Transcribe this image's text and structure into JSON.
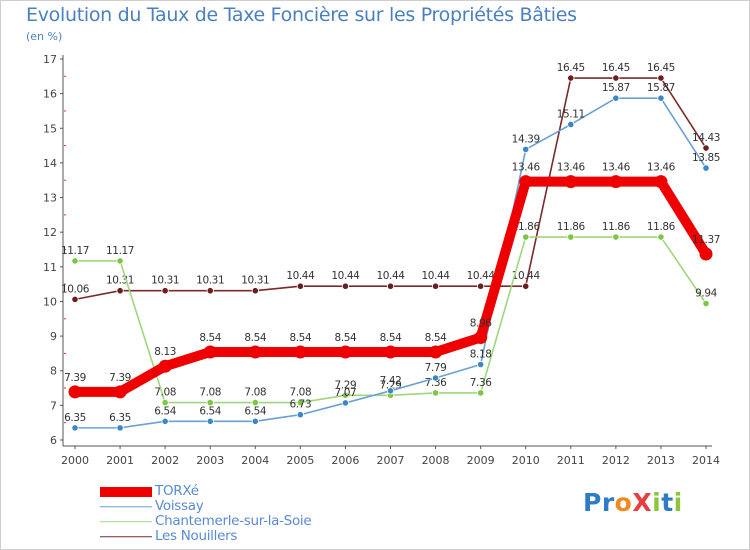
{
  "title": "Evolution du Taux de Taxe Foncière sur les Propriétés Bâties",
  "unit_label": "(en %)",
  "brand": {
    "name": "ProXiti",
    "letters": [
      {
        "ch": "P",
        "color": "#2e7bc6"
      },
      {
        "ch": "r",
        "color": "#2e7bc6"
      },
      {
        "ch": "o",
        "color": "#f08a22"
      },
      {
        "ch": "X",
        "color": "#e73f3f"
      },
      {
        "ch": "i",
        "color": "#8cc63f"
      },
      {
        "ch": "t",
        "color": "#2e7bc6"
      },
      {
        "ch": "i",
        "color": "#8cc63f"
      }
    ]
  },
  "chart_data": {
    "type": "line",
    "title": "Evolution du Taux de Taxe Foncière sur les Propriétés Bâties",
    "ylabel": "(en %)",
    "xlabel": "",
    "x": [
      "2000",
      "2001",
      "2002",
      "2003",
      "2004",
      "2005",
      "2006",
      "2007",
      "2008",
      "2009",
      "2010",
      "2011",
      "2012",
      "2013",
      "2014"
    ],
    "ylim": [
      6,
      17
    ],
    "yticks": [
      "6",
      "7",
      "8",
      "9",
      "10",
      "11",
      "12",
      "13",
      "14",
      "15",
      "16",
      "17"
    ],
    "grid": false,
    "legend_position": "bottom-left",
    "series": [
      {
        "name": "Les Nouillers",
        "color": "#7a2a2a",
        "dot": "#6b1e1e",
        "width": "thin",
        "values": [
          10.06,
          10.31,
          10.31,
          10.31,
          10.31,
          10.44,
          10.44,
          10.44,
          10.44,
          10.44,
          10.44,
          16.45,
          16.45,
          16.45,
          14.43
        ],
        "labels": [
          "10.06",
          "10.31",
          "10.31",
          "10.31",
          "10.31",
          "10.44",
          "10.44",
          "10.44",
          "10.44",
          "10.44",
          "10.44",
          "16.45",
          "16.45",
          "16.45",
          "14.43"
        ]
      },
      {
        "name": "Chantemerle-sur-la-Soie",
        "color": "#9ed77a",
        "dot": "#7cc644",
        "width": "thin",
        "values": [
          11.17,
          11.17,
          7.08,
          7.08,
          7.08,
          7.08,
          7.29,
          7.29,
          7.36,
          7.36,
          11.86,
          11.86,
          11.86,
          11.86,
          9.94
        ],
        "labels": [
          "11.17",
          "11.17",
          "7.08",
          "7.08",
          "7.08",
          "7.08",
          "7.29",
          "7.29",
          "7.36",
          "7.36",
          "11.86",
          "11.86",
          "11.86",
          "11.86",
          "9.94"
        ]
      },
      {
        "name": "Voissay",
        "color": "#6aa0d6",
        "dot": "#3d86c8",
        "width": "thin",
        "values": [
          6.35,
          6.35,
          6.54,
          6.54,
          6.54,
          6.73,
          7.07,
          7.42,
          7.79,
          8.18,
          14.39,
          15.11,
          15.87,
          15.87,
          13.85
        ],
        "labels": [
          "6.35",
          "6.35",
          "6.54",
          "6.54",
          "6.54",
          "6.73",
          "7.07",
          "7.42",
          "7.79",
          "8.18",
          "14.39",
          "15.11",
          "15.87",
          "15.87",
          "13.85"
        ]
      },
      {
        "name": "TORXé",
        "color": "#ee0000",
        "dot": "#ee0000",
        "width": "thick",
        "values": [
          7.39,
          7.39,
          8.13,
          8.54,
          8.54,
          8.54,
          8.54,
          8.54,
          8.54,
          8.96,
          13.46,
          13.46,
          13.46,
          13.46,
          11.37
        ],
        "labels": [
          "7.39",
          "7.39",
          "8.13",
          "8.54",
          "8.54",
          "8.54",
          "8.54",
          "8.54",
          "8.54",
          "8.96",
          "13.46",
          "13.46",
          "13.46",
          "13.46",
          "11.37"
        ]
      }
    ]
  },
  "legend": [
    {
      "label": "TORXé",
      "color": "#ee0000",
      "width": "thick"
    },
    {
      "label": "Voissay",
      "color": "#6aa0d6",
      "width": "thin"
    },
    {
      "label": "Chantemerle-sur-la-Soie",
      "color": "#9ed77a",
      "width": "thin"
    },
    {
      "label": "Les Nouillers",
      "color": "#7a2a2a",
      "width": "thin"
    }
  ]
}
